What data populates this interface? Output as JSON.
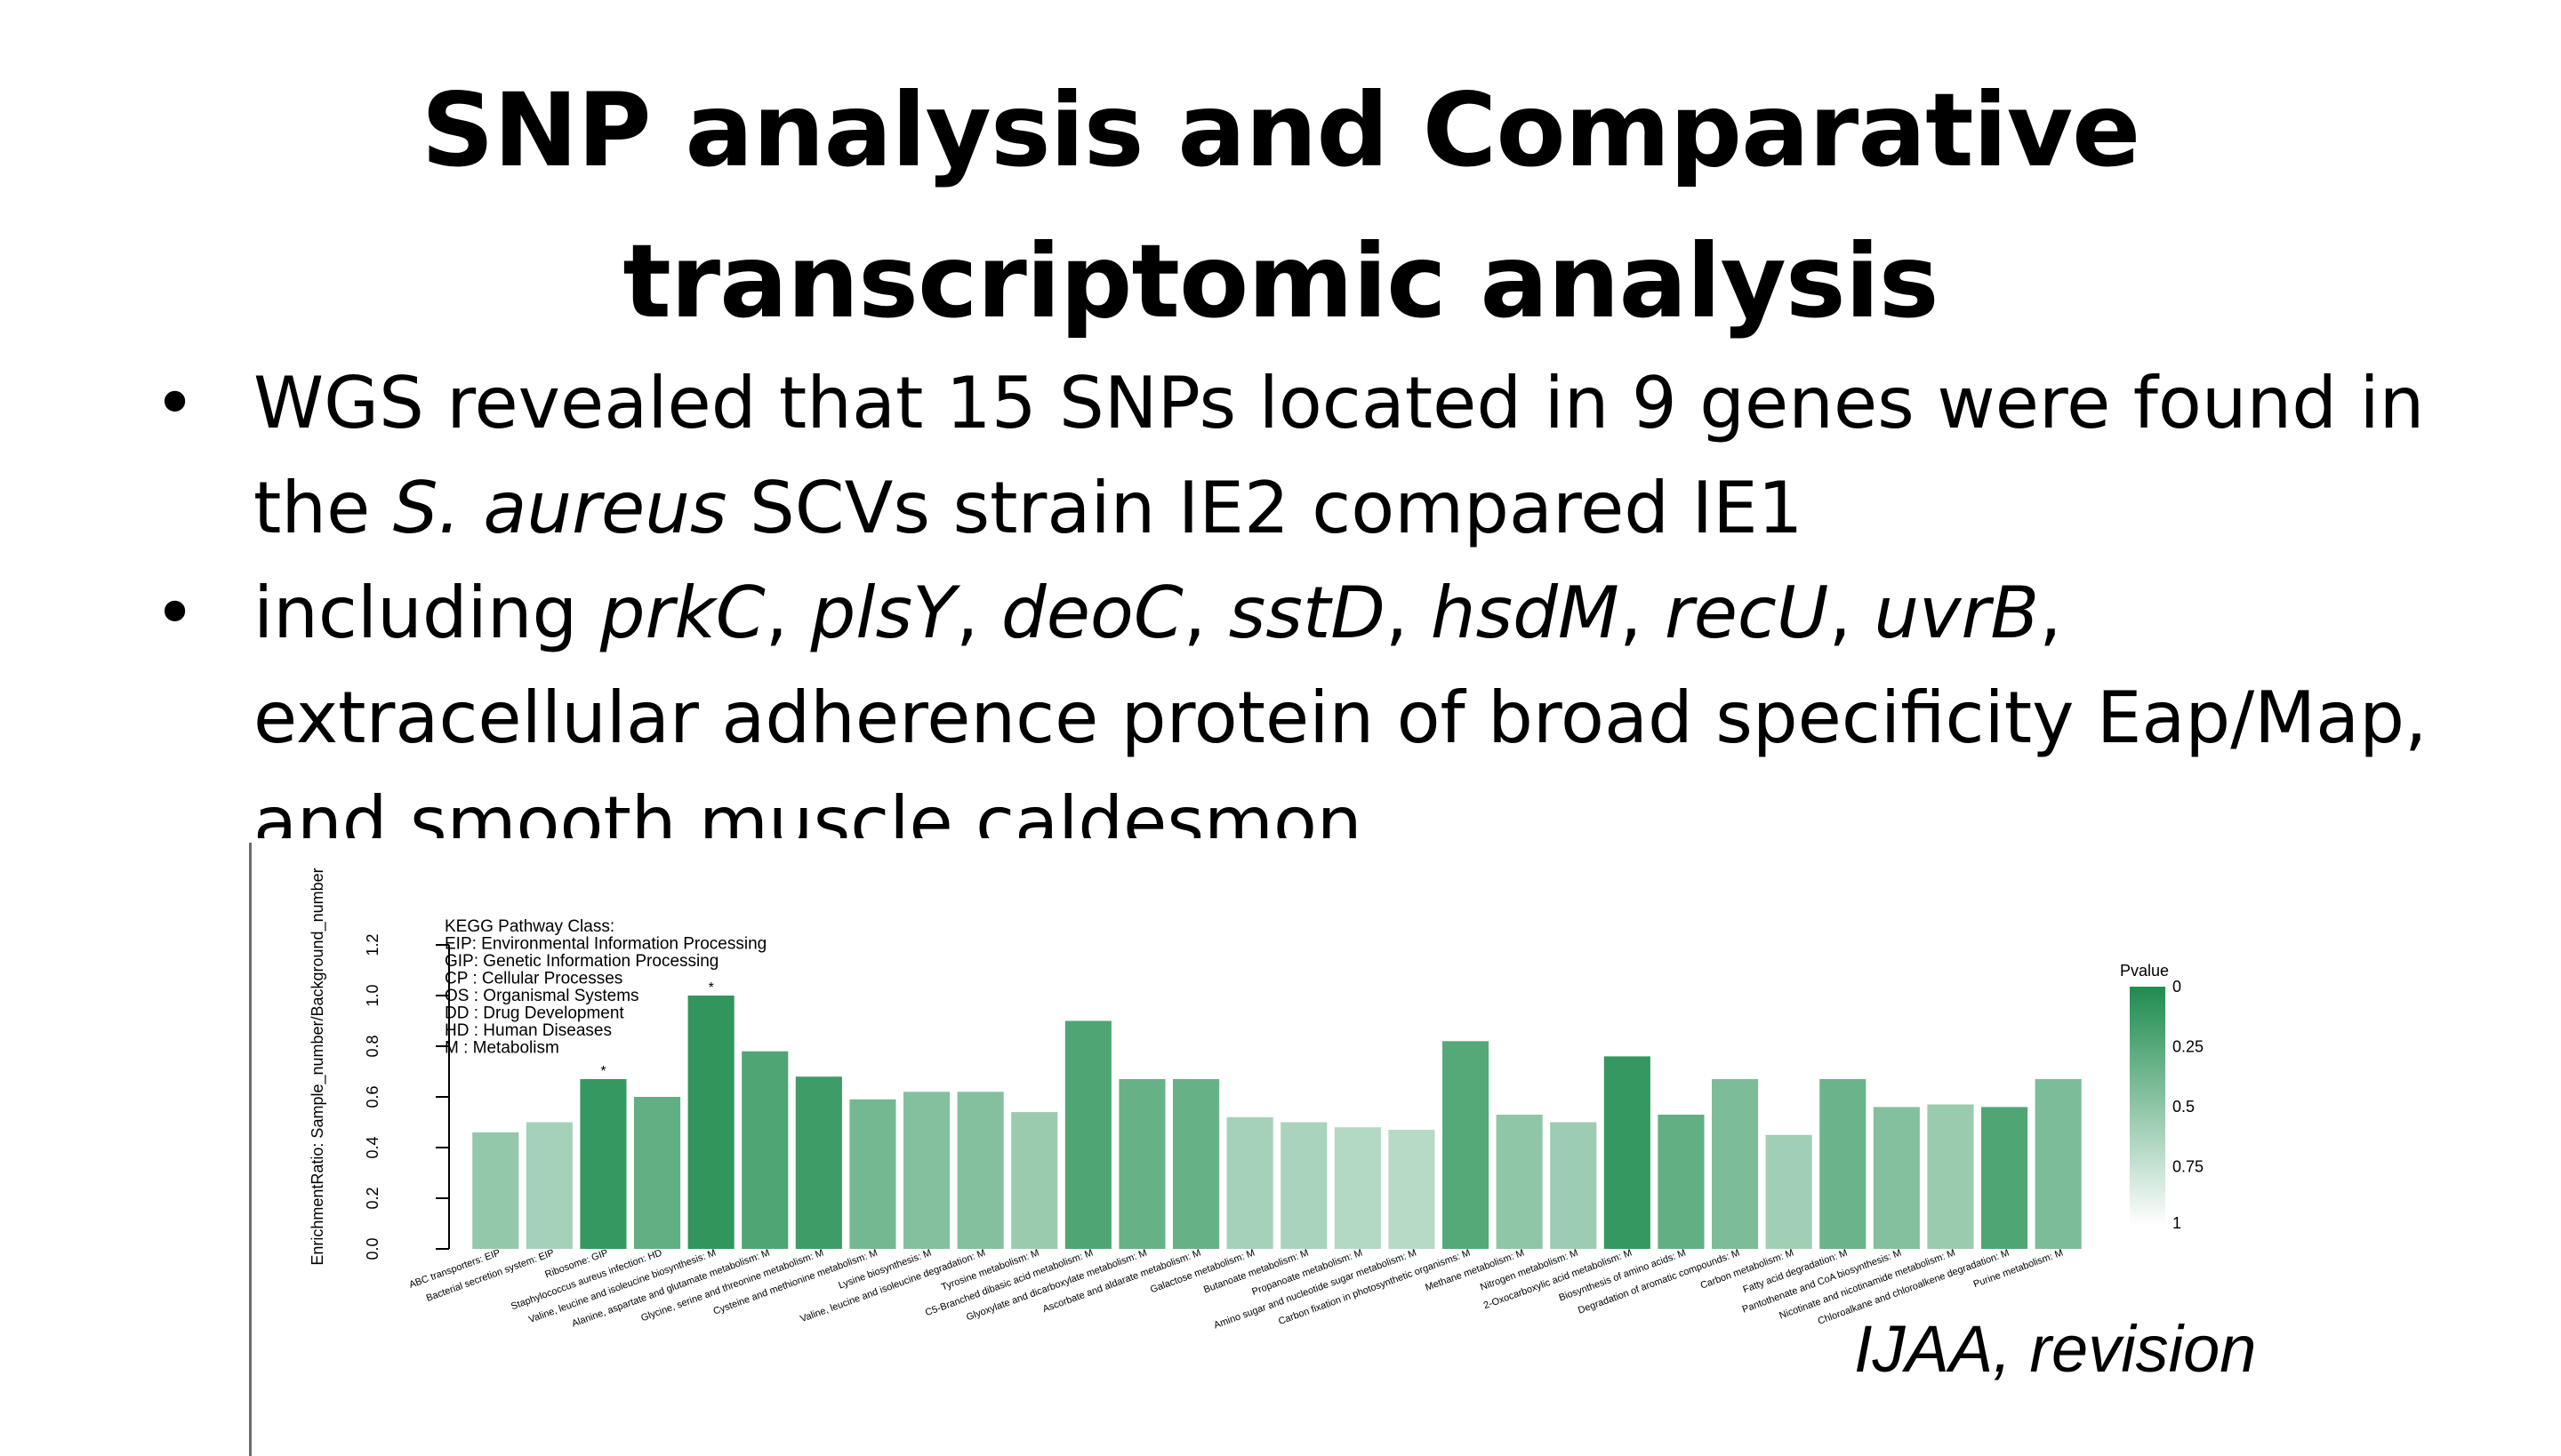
{
  "slide": {
    "title_line1": "SNP analysis and Comparative",
    "title_line2": "transcriptomic analysis",
    "bullets": [
      {
        "bullet_char": "•",
        "line1": "WGS revealed that 15 SNPs located in 9 genes were found in",
        "line2_pre": "the ",
        "line2_italic": "S. aureus",
        "line2_post": " SCVs strain IE2 compared IE1"
      },
      {
        "bullet_char": "•",
        "line1_pre": "including ",
        "line1_genes": [
          {
            "gene": "prkC",
            "sep": ", "
          },
          {
            "gene": "plsY",
            "sep": ", "
          },
          {
            "gene": "deoC",
            "sep": ", "
          },
          {
            "gene": "sstD",
            "sep": ", "
          },
          {
            "gene": "hsdM",
            "sep": ", "
          },
          {
            "gene": "recU",
            "sep": ", "
          },
          {
            "gene": "uvrB",
            "sep": ","
          }
        ],
        "line2": "extracellular adherence protein of broad specificity Eap/Map,",
        "line3": "and smooth muscle caldesmon"
      }
    ],
    "citation": "IJAA, revision"
  },
  "chart_data": {
    "type": "bar",
    "ylabel": "EnrichmentRatio: Sample_number/Background_number",
    "ylim": [
      0,
      1.2
    ],
    "yticks": [
      "0.0",
      "0.2",
      "0.4",
      "0.6",
      "0.8",
      "1.0",
      "1.2"
    ],
    "legend_text": [
      "KEGG Pathway Class:",
      "EIP: Environmental Information Processing",
      "GIP: Genetic Information Processing",
      "CP : Cellular Processes",
      "OS : Organismal Systems",
      "DD : Drug Development",
      "HD : Human Diseases",
      "M  : Metabolism"
    ],
    "colorbar": {
      "title": "Pvalue",
      "labels": [
        "0",
        "0.25",
        "0.5",
        "0.75",
        "1"
      ],
      "color_low_p": "#1f8c4e",
      "color_high_p": "#ffffff"
    },
    "categories": [
      "ABC transporters: EIP",
      "Bacterial secretion system: EIP",
      "Ribosome: GIP",
      "Staphylococcus aureus infection: HD",
      "Valine, leucine and isoleucine biosynthesis: M",
      "Alanine, aspartate and glutamate metabolism: M",
      "Glycine, serine and threonine metabolism: M",
      "Cysteine and methionine metabolism: M",
      "Lysine biosynthesis: M",
      "Valine, leucine and isoleucine degradation: M",
      "Tyrosine metabolism: M",
      "C5-Branched dibasic acid metabolism: M",
      "Glyoxylate and dicarboxylate metabolism: M",
      "Ascorbate and aldarate metabolism: M",
      "Galactose metabolism: M",
      "Butanoate metabolism: M",
      "Propanoate metabolism: M",
      "Amino sugar and nucleotide sugar metabolism: M",
      "Carbon fixation in photosynthetic organisms: M",
      "Methane metabolism: M",
      "Nitrogen metabolism: M",
      "2-Oxocarboxylic acid metabolism: M",
      "Biosynthesis of amino acids: M",
      "Degradation of aromatic compounds: M",
      "Carbon metabolism: M",
      "Fatty acid degradation: M",
      "Pantothenate and CoA biosynthesis: M",
      "Nicotinate and nicotinamide metabolism: M",
      "Chloroalkane and chloroalkene degradation: M",
      "Purine metabolism: M"
    ],
    "values": [
      0.46,
      0.5,
      0.67,
      0.6,
      1.0,
      0.78,
      0.68,
      0.59,
      0.62,
      0.62,
      0.54,
      0.9,
      0.67,
      0.67,
      0.52,
      0.5,
      0.48,
      0.47,
      0.82,
      0.53,
      0.5,
      0.76,
      0.53,
      0.67,
      0.45,
      0.67,
      0.56,
      0.57,
      0.56,
      0.67
    ],
    "pvalues": [
      0.52,
      0.6,
      0.1,
      0.3,
      0.08,
      0.22,
      0.14,
      0.38,
      0.45,
      0.45,
      0.55,
      0.22,
      0.32,
      0.32,
      0.6,
      0.62,
      0.66,
      0.68,
      0.24,
      0.5,
      0.56,
      0.1,
      0.3,
      0.42,
      0.58,
      0.34,
      0.45,
      0.55,
      0.22,
      0.42
    ],
    "marked_indices": [
      2,
      4
    ],
    "marker": "*",
    "grid": false
  }
}
